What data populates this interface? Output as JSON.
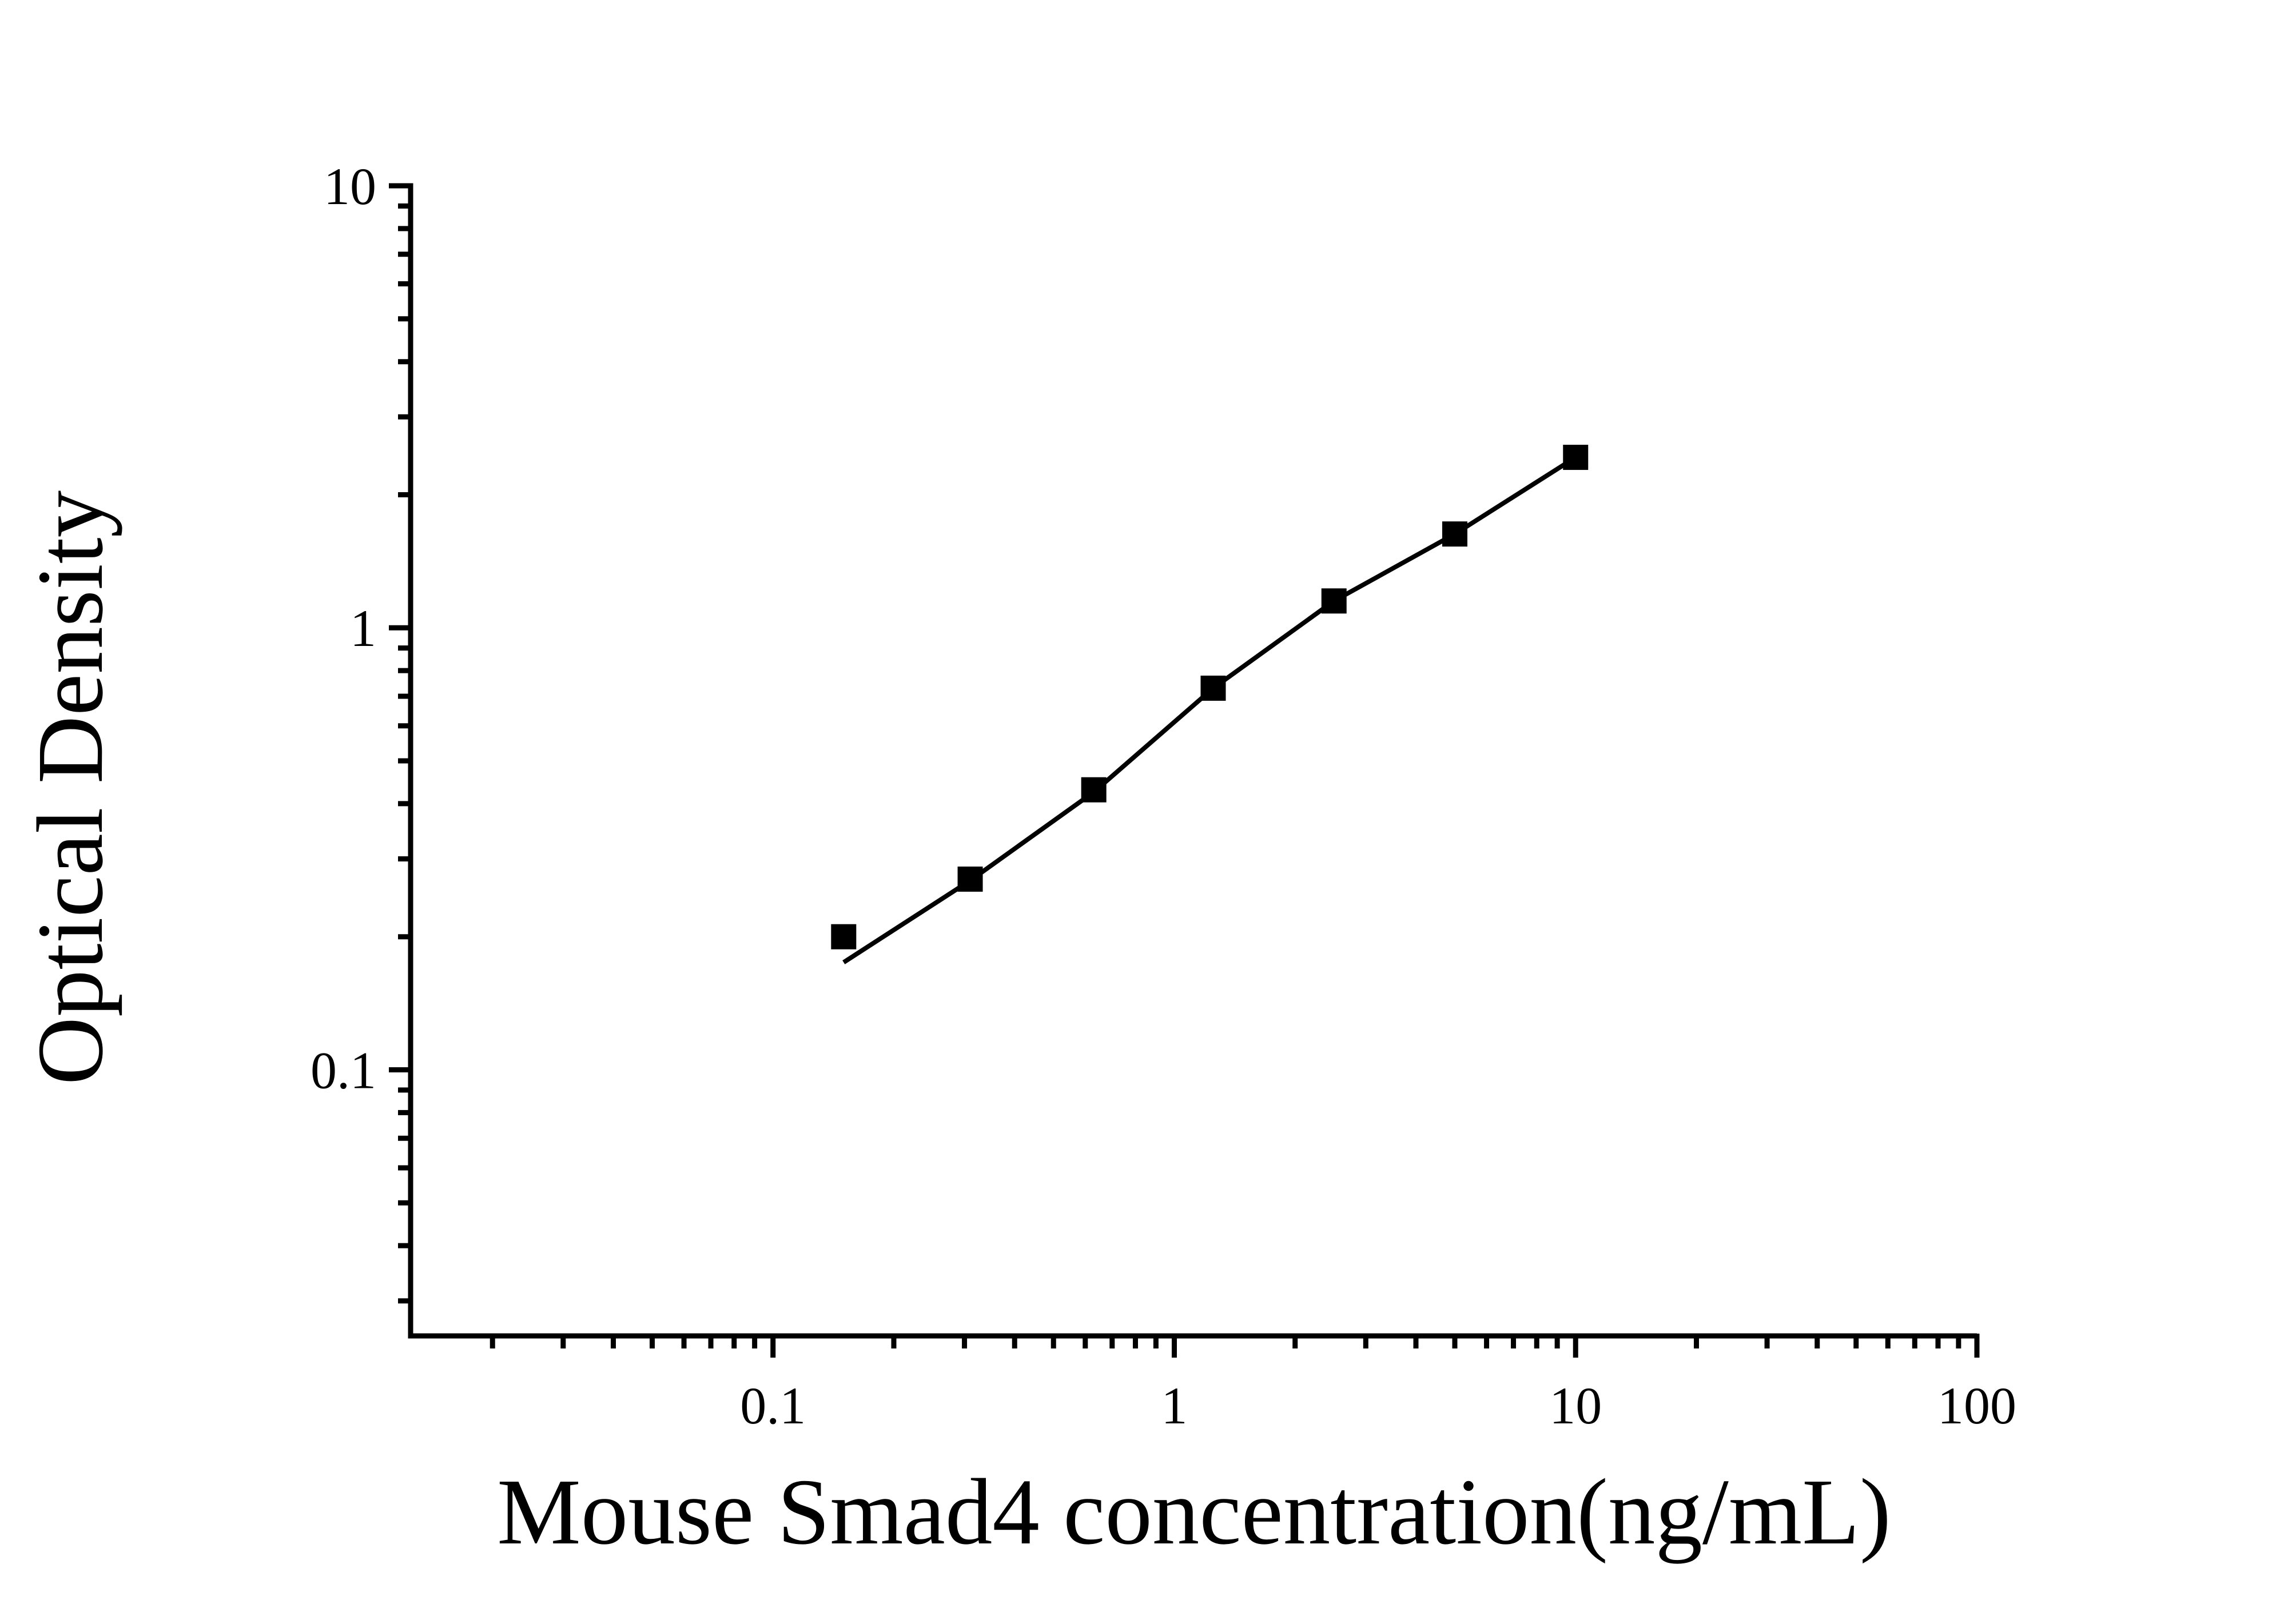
{
  "chart_data": {
    "type": "scatter",
    "title": "",
    "xlabel": "Mouse Smad4 concentration(ng/mL)",
    "ylabel": "Optical Density",
    "x_scale": "log",
    "y_scale": "log",
    "xlim": [
      0.0125,
      100
    ],
    "ylim": [
      0.025,
      10
    ],
    "x_major_ticks": [
      0.1,
      1,
      10,
      100
    ],
    "x_major_tick_labels": [
      "0.1",
      "1",
      "10",
      "100"
    ],
    "y_major_ticks": [
      0.1,
      1,
      10
    ],
    "y_major_tick_labels": [
      "0.1",
      "1",
      "10"
    ],
    "minor_ticks": "log-decade 2-9 subdivisions, drawn outward",
    "grid": "off",
    "legend": "none",
    "series": [
      {
        "name": "standard-points",
        "marker": "filled-square",
        "color": "#000000",
        "x": [
          0.15,
          0.31,
          0.63,
          1.25,
          2.5,
          5,
          10
        ],
        "y": [
          0.2,
          0.27,
          0.43,
          0.73,
          1.15,
          1.63,
          2.43
        ]
      }
    ],
    "fit_line": {
      "color": "#000000",
      "x": [
        0.15,
        0.31,
        0.63,
        1.25,
        2.5,
        5,
        10
      ],
      "y": [
        0.175,
        0.268,
        0.425,
        0.73,
        1.15,
        1.63,
        2.43
      ]
    },
    "colors": {
      "foreground": "#000000",
      "background": "#ffffff"
    }
  }
}
